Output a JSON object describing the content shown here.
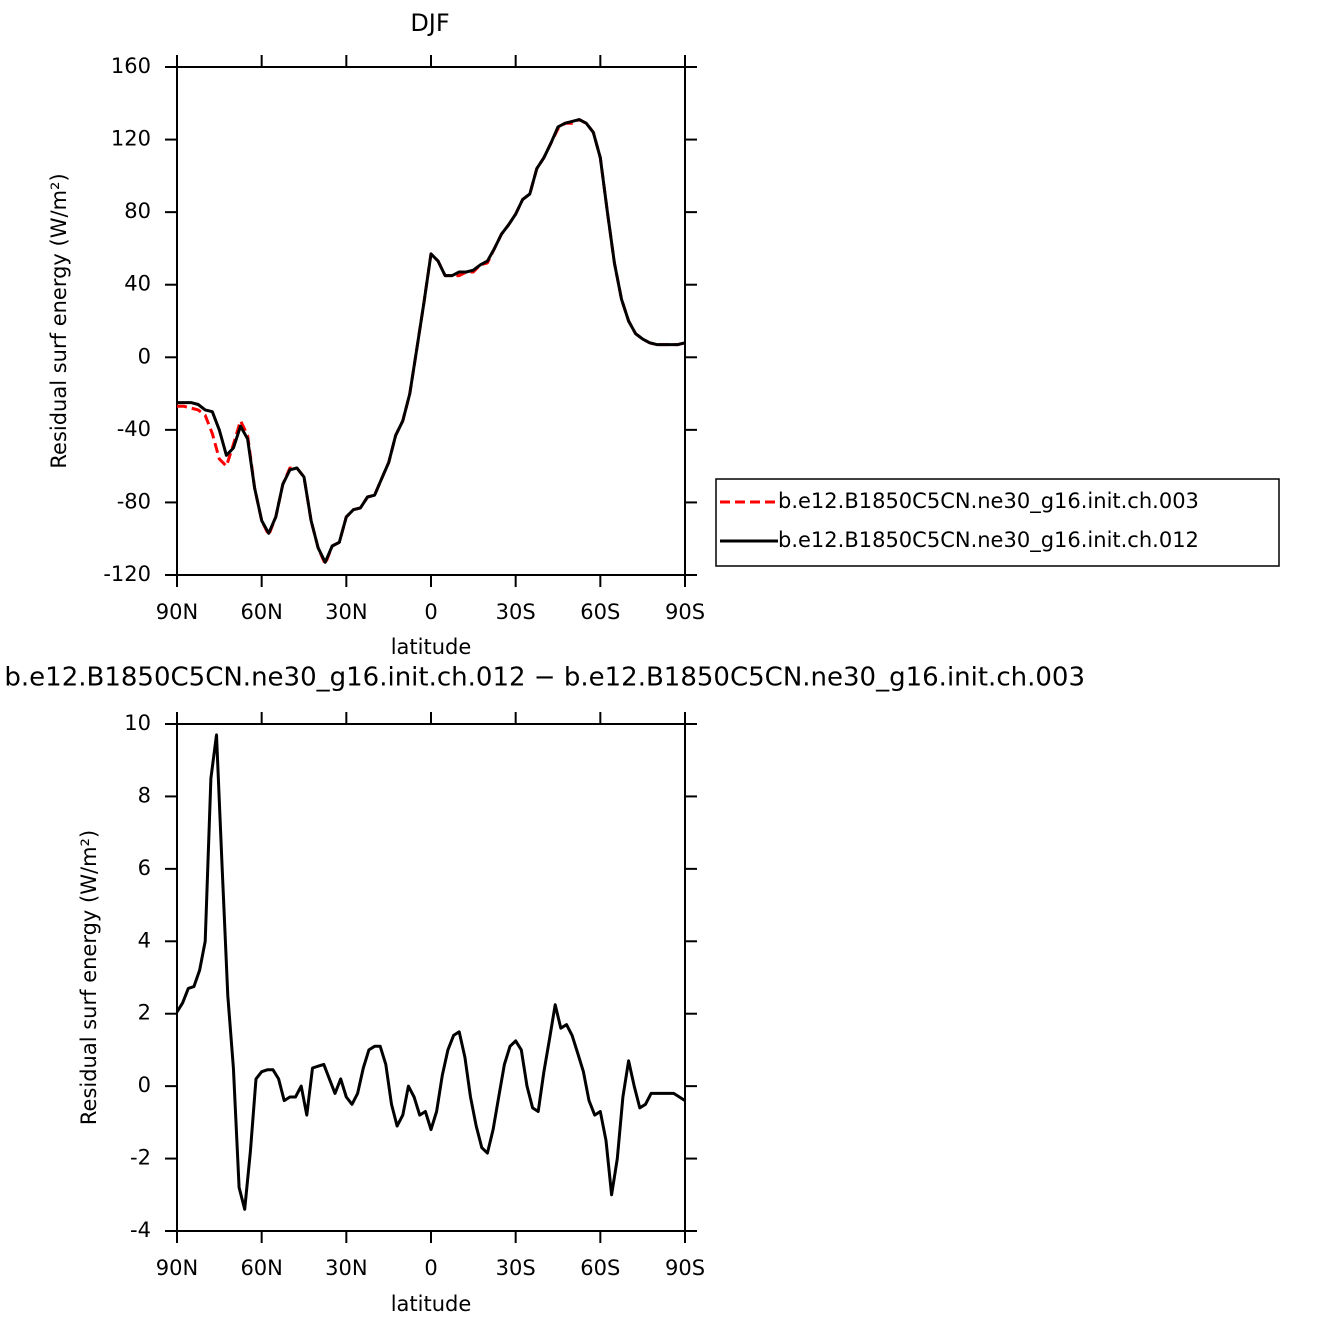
{
  "chart_data": [
    {
      "type": "line",
      "title": "DJF",
      "xlabel": "latitude",
      "ylabel": "Residual surf energy (W/m²)",
      "x": [
        90,
        87.5,
        85,
        82.5,
        80,
        77.5,
        75,
        72.5,
        70,
        67.5,
        65,
        62.5,
        60,
        57.5,
        55,
        52.5,
        50,
        47.5,
        45,
        42.5,
        40,
        37.5,
        35,
        32.5,
        30,
        27.5,
        25,
        22.5,
        20,
        17.5,
        15,
        12.5,
        10,
        7.5,
        5,
        2.5,
        0,
        -2.5,
        -5,
        -7.5,
        -10,
        -12.5,
        -15,
        -17.5,
        -20,
        -22.5,
        -25,
        -27.5,
        -30,
        -32.5,
        -35,
        -37.5,
        -40,
        -42.5,
        -45,
        -47.5,
        -50,
        -52.5,
        -55,
        -57.5,
        -60,
        -62.5,
        -65,
        -67.5,
        -70,
        -72.5,
        -75,
        -77.5,
        -80,
        -82.5,
        -85,
        -87.5,
        -90
      ],
      "series": [
        {
          "name": "b.e12.B1850C5CN.ne30_g16.init.ch.003",
          "color": "#ff0000",
          "line_style": "dashed",
          "values": [
            -27,
            -27,
            -28,
            -29,
            -32,
            -42,
            -56,
            -60,
            -48,
            -35,
            -43,
            -72,
            -90,
            -98,
            -88,
            -70,
            -61,
            -61,
            -66,
            -90,
            -105,
            -114,
            -104,
            -102,
            -88,
            -84,
            -83,
            -77,
            -76,
            -67,
            -58,
            -43,
            -35,
            -20,
            5,
            30,
            57,
            53,
            45,
            45,
            45,
            47,
            47,
            51,
            52,
            60,
            68,
            73,
            79,
            87,
            90,
            104,
            110,
            118,
            126,
            129,
            129,
            131,
            129,
            124,
            110,
            80,
            52,
            32,
            20,
            13,
            10,
            8,
            7,
            7,
            7,
            7,
            8
          ]
        },
        {
          "name": "b.e12.B1850C5CN.ne30_g16.init.ch.012",
          "color": "#000000",
          "line_style": "solid",
          "values": [
            -25,
            -25,
            -25,
            -26,
            -29,
            -30,
            -40,
            -54,
            -50,
            -38,
            -45,
            -72,
            -90,
            -97,
            -88,
            -70,
            -62,
            -61,
            -66,
            -90,
            -105,
            -113,
            -104,
            -102,
            -88,
            -84,
            -83,
            -77,
            -76,
            -67,
            -58,
            -43,
            -35,
            -20,
            5,
            30,
            57,
            53,
            45,
            45,
            47,
            47,
            48,
            51,
            53,
            60,
            68,
            73,
            79,
            87,
            90,
            104,
            110,
            118,
            127,
            129,
            130,
            131,
            129,
            124,
            110,
            80,
            52,
            32,
            20,
            13,
            10,
            8,
            7,
            7,
            7,
            7,
            8
          ]
        }
      ],
      "xlim": [
        90,
        -90
      ],
      "xticks": [
        {
          "value": 90,
          "label": "90N"
        },
        {
          "value": 60,
          "label": "60N"
        },
        {
          "value": 30,
          "label": "30N"
        },
        0,
        {
          "value": -30,
          "label": "30S"
        },
        {
          "value": -60,
          "label": "60S"
        },
        {
          "value": -90,
          "label": "90S"
        }
      ],
      "ylim": [
        -120,
        160
      ],
      "yticks": [
        -120,
        -80,
        -40,
        0,
        40,
        80,
        120,
        160
      ],
      "legend": "right"
    },
    {
      "type": "line",
      "title": "b.e12.B1850C5CN.ne30_g16.init.ch.012 − b.e12.B1850C5CN.ne30_g16.init.ch.003",
      "xlabel": "latitude",
      "ylabel": "Residual surf energy (W/m²)",
      "x": [
        90,
        88,
        86,
        84,
        82,
        80,
        78,
        76,
        74,
        72,
        70,
        68,
        66,
        64,
        62,
        60,
        58,
        56,
        54,
        52,
        50,
        48,
        46,
        44,
        42,
        40,
        38,
        36,
        34,
        32,
        30,
        28,
        26,
        24,
        22,
        20,
        18,
        16,
        14,
        12,
        10,
        8,
        6,
        4,
        2,
        0,
        -2,
        -4,
        -6,
        -8,
        -10,
        -12,
        -14,
        -16,
        -18,
        -20,
        -22,
        -24,
        -26,
        -28,
        -30,
        -32,
        -34,
        -36,
        -38,
        -40,
        -42,
        -44,
        -46,
        -48,
        -50,
        -52,
        -54,
        -56,
        -58,
        -60,
        -62,
        -64,
        -66,
        -68,
        -70,
        -72,
        -74,
        -76,
        -78,
        -80,
        -82,
        -84,
        -86,
        -88,
        -90
      ],
      "color": "#000000",
      "values": [
        2.05,
        2.3,
        2.7,
        2.75,
        3.2,
        4.0,
        8.5,
        9.7,
        6.0,
        2.5,
        0.5,
        -2.8,
        -3.4,
        -1.8,
        0.2,
        0.4,
        0.45,
        0.45,
        0.2,
        -0.4,
        -0.3,
        -0.3,
        0.0,
        -0.8,
        0.5,
        0.55,
        0.6,
        0.2,
        -0.2,
        0.2,
        -0.3,
        -0.5,
        -0.2,
        0.5,
        1.0,
        1.1,
        1.1,
        0.6,
        -0.5,
        -1.1,
        -0.8,
        0.0,
        -0.3,
        -0.8,
        -0.7,
        -1.2,
        -0.7,
        0.3,
        1.0,
        1.4,
        1.5,
        0.8,
        -0.3,
        -1.1,
        -1.7,
        -1.85,
        -1.2,
        -0.3,
        0.6,
        1.1,
        1.25,
        1.0,
        0.0,
        -0.6,
        -0.7,
        0.4,
        1.3,
        2.25,
        1.6,
        1.7,
        1.4,
        0.9,
        0.4,
        -0.4,
        -0.8,
        -0.7,
        -1.5,
        -3.0,
        -2.0,
        -0.3,
        0.7,
        0.0,
        -0.6,
        -0.5,
        -0.2,
        -0.2,
        -0.2,
        -0.2,
        -0.2,
        -0.3,
        -0.4
      ],
      "xlim": [
        90,
        -90
      ],
      "xticks": [
        {
          "value": 90,
          "label": "90N"
        },
        {
          "value": 60,
          "label": "60N"
        },
        {
          "value": 30,
          "label": "30N"
        },
        0,
        {
          "value": -30,
          "label": "30S"
        },
        {
          "value": -60,
          "label": "60S"
        },
        {
          "value": -90,
          "label": "90S"
        }
      ],
      "ylim": [
        -4,
        10
      ],
      "yticks": [
        -4,
        -2,
        0,
        2,
        4,
        6,
        8,
        10
      ]
    }
  ]
}
